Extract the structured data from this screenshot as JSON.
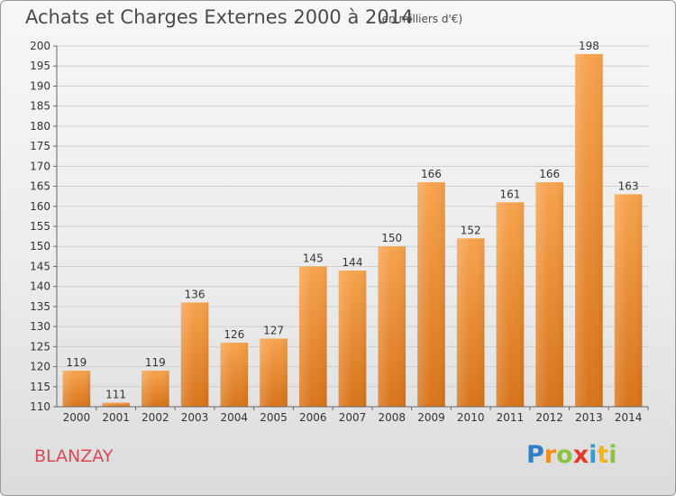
{
  "title": "Achats et Charges Externes 2000 à 2014",
  "subtitle": "(en milliers d'€)",
  "commune": "BLANZAY",
  "logo": {
    "letters": [
      "P",
      "r",
      "o",
      "x",
      "i",
      "t",
      "i"
    ],
    "colors": [
      "#2f7fc8",
      "#f28c1e",
      "#8cc43f",
      "#e8382e",
      "#2f9fd8",
      "#f2b51e",
      "#8cc43f"
    ]
  },
  "chart_data": {
    "type": "bar",
    "categories": [
      "2000",
      "2001",
      "2002",
      "2003",
      "2004",
      "2005",
      "2006",
      "2007",
      "2008",
      "2009",
      "2010",
      "2011",
      "2012",
      "2013",
      "2014"
    ],
    "values": [
      119,
      111,
      119,
      136,
      126,
      127,
      145,
      144,
      150,
      166,
      152,
      161,
      166,
      198,
      163
    ],
    "ylim": [
      110,
      200
    ],
    "yticks": [
      110,
      115,
      120,
      125,
      130,
      135,
      140,
      145,
      150,
      155,
      160,
      165,
      170,
      175,
      180,
      185,
      190,
      195,
      200
    ],
    "grid": true,
    "bar_color_top": "#f7a34e",
    "bar_color_bottom": "#d8741a"
  }
}
